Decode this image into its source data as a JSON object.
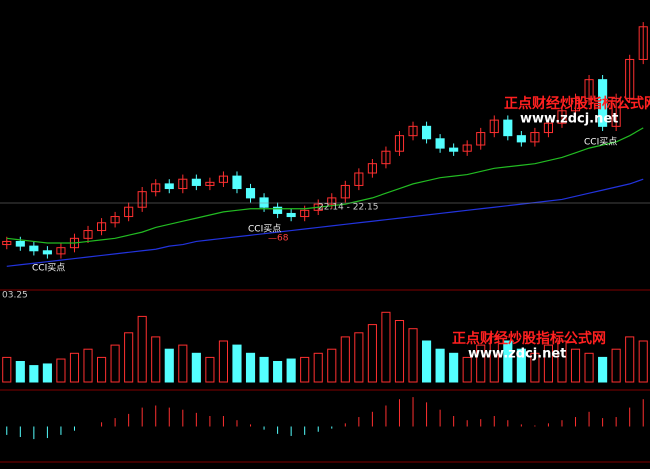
{
  "chart_data": {
    "type": "candlestick",
    "watermark": "正点财经炒股指标公式网",
    "watermark_url": "www.zdcj.net",
    "buy_label": "CCI买点",
    "level_label": "22.14 - 22.15",
    "volume_label": "03.25",
    "minus_label": "—68",
    "open": [
      19.6,
      19.8,
      19.5,
      19.2,
      19.0,
      19.4,
      20.0,
      20.5,
      21.0,
      21.4,
      22.0,
      23.0,
      23.5,
      23.2,
      23.8,
      23.4,
      23.6,
      24.0,
      23.2,
      22.6,
      22.0,
      21.6,
      21.4,
      21.8,
      22.2,
      22.6,
      23.4,
      24.2,
      24.8,
      25.6,
      26.6,
      27.2,
      26.4,
      25.8,
      25.6,
      26.0,
      26.8,
      27.6,
      26.6,
      26.2,
      26.8,
      27.4,
      28.2,
      29.0,
      30.2,
      27.2,
      29.0,
      31.5
    ],
    "high": [
      20.1,
      20.1,
      19.8,
      19.5,
      19.7,
      20.3,
      20.8,
      21.3,
      21.7,
      22.3,
      23.3,
      23.8,
      23.8,
      24.1,
      24.1,
      23.9,
      24.3,
      24.3,
      23.5,
      22.9,
      22.3,
      21.9,
      22.1,
      22.5,
      22.9,
      23.7,
      24.5,
      25.1,
      25.9,
      26.9,
      27.5,
      27.5,
      26.7,
      26.1,
      26.3,
      27.1,
      27.9,
      27.9,
      26.9,
      27.1,
      27.7,
      28.5,
      29.3,
      30.5,
      30.5,
      29.3,
      31.8,
      33.9
    ],
    "low": [
      19.3,
      19.2,
      18.9,
      18.7,
      18.7,
      19.1,
      19.7,
      20.2,
      20.7,
      21.1,
      21.7,
      22.7,
      22.9,
      22.9,
      23.1,
      23.1,
      23.3,
      22.9,
      22.3,
      21.7,
      21.3,
      21.1,
      21.1,
      21.5,
      21.9,
      22.3,
      23.1,
      23.9,
      24.5,
      25.3,
      26.3,
      26.1,
      25.5,
      25.3,
      25.3,
      25.7,
      26.5,
      26.3,
      25.9,
      25.9,
      26.5,
      27.1,
      27.9,
      28.7,
      26.9,
      26.9,
      28.7,
      31.2
    ],
    "close": [
      19.8,
      19.5,
      19.2,
      19.0,
      19.4,
      20.0,
      20.5,
      21.0,
      21.4,
      22.0,
      23.0,
      23.5,
      23.2,
      23.8,
      23.4,
      23.6,
      24.0,
      23.2,
      22.6,
      22.0,
      21.6,
      21.4,
      21.8,
      22.2,
      22.6,
      23.4,
      24.2,
      24.8,
      25.6,
      26.6,
      27.2,
      26.4,
      25.8,
      25.6,
      26.0,
      26.8,
      27.6,
      26.6,
      26.2,
      26.8,
      27.4,
      28.2,
      29.0,
      30.2,
      27.2,
      29.0,
      31.5,
      33.6
    ],
    "ylim": [
      17,
      35
    ],
    "lines": [
      {
        "color": "#22bb22",
        "values": [
          20.0,
          19.9,
          19.8,
          19.7,
          19.7,
          19.7,
          19.8,
          19.9,
          20.0,
          20.2,
          20.4,
          20.7,
          20.9,
          21.1,
          21.3,
          21.5,
          21.7,
          21.8,
          21.9,
          21.9,
          21.9,
          21.9,
          21.9,
          22.0,
          22.1,
          22.2,
          22.4,
          22.6,
          22.9,
          23.2,
          23.5,
          23.7,
          23.9,
          24.0,
          24.1,
          24.3,
          24.5,
          24.6,
          24.7,
          24.8,
          25.0,
          25.2,
          25.5,
          25.8,
          26.0,
          26.2,
          26.6,
          27.1
        ]
      },
      {
        "color": "#2233dd",
        "values": [
          18.2,
          18.3,
          18.4,
          18.5,
          18.6,
          18.7,
          18.8,
          18.9,
          19.0,
          19.1,
          19.2,
          19.3,
          19.5,
          19.6,
          19.8,
          19.9,
          20.0,
          20.1,
          20.2,
          20.3,
          20.4,
          20.5,
          20.6,
          20.7,
          20.8,
          20.9,
          21.0,
          21.1,
          21.2,
          21.3,
          21.4,
          21.5,
          21.6,
          21.7,
          21.8,
          21.9,
          22.0,
          22.1,
          22.2,
          22.3,
          22.4,
          22.5,
          22.7,
          22.9,
          23.1,
          23.3,
          23.5,
          23.8
        ]
      }
    ],
    "up_color": "#ff3030",
    "down_color": "#54ffff",
    "volume": [
      30,
      25,
      20,
      22,
      28,
      35,
      40,
      30,
      45,
      60,
      80,
      55,
      40,
      45,
      35,
      30,
      50,
      45,
      35,
      30,
      25,
      28,
      30,
      35,
      40,
      55,
      60,
      70,
      85,
      75,
      65,
      50,
      40,
      35,
      30,
      45,
      55,
      50,
      40,
      35,
      45,
      50,
      40,
      35,
      30,
      40,
      55,
      50
    ],
    "volume_ylim": [
      0,
      100
    ],
    "macd": [
      -0.8,
      -1,
      -1.2,
      -1.1,
      -0.8,
      -0.4,
      0,
      0.4,
      0.8,
      1.2,
      1.8,
      2.0,
      1.8,
      1.6,
      1.3,
      1.0,
      1.0,
      0.6,
      0.2,
      -0.3,
      -0.7,
      -0.9,
      -0.8,
      -0.5,
      -0.2,
      0.3,
      0.9,
      1.4,
      2.0,
      2.6,
      2.8,
      2.3,
      1.6,
      1.0,
      0.6,
      0.7,
      1.0,
      0.6,
      0.2,
      0.1,
      0.3,
      0.6,
      0.9,
      1.4,
      0.8,
      0.9,
      1.8,
      2.6
    ],
    "macd_ylim": [
      -3,
      3
    ]
  }
}
